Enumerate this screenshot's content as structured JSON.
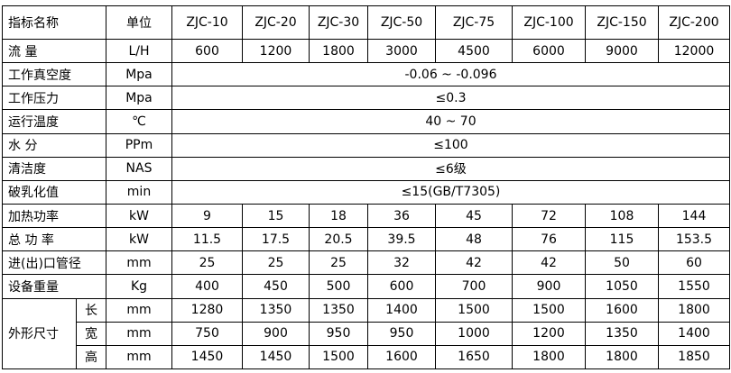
{
  "table": {
    "header": [
      "指标名称",
      "单位",
      "ZJC-10",
      "ZJC-20",
      "ZJC-30",
      "ZJC-50",
      "ZJC-75",
      "ZJC-100",
      "ZJC-150",
      "ZJC-200"
    ],
    "rows": [
      {
        "label": "流 量",
        "unit": "L/H",
        "values": [
          600,
          1200,
          1800,
          3000,
          4500,
          6000,
          9000,
          12000
        ]
      },
      {
        "label": "工作真空度",
        "unit": "Mpa",
        "value": "-0.06 ~ -0.096"
      },
      {
        "label": "工作压力",
        "unit": "Mpa",
        "value": "≤0.3"
      },
      {
        "label": "运行温度",
        "unit": "℃",
        "value": "40 ~ 70"
      },
      {
        "label": "水 分",
        "unit": "PPm",
        "value": "≤100"
      },
      {
        "label": "清洁度",
        "unit": "NAS",
        "value": "≤6级"
      },
      {
        "label": "破乳化值",
        "unit": "min",
        "value": "≤15(GB/T7305)"
      },
      {
        "label": "加热功率",
        "unit": "kW",
        "values": [
          9,
          15,
          18,
          36,
          45,
          72,
          108,
          144
        ]
      },
      {
        "label": "总 功 率",
        "unit": "kW",
        "values": [
          11.5,
          17.5,
          20.5,
          39.5,
          48,
          76,
          115,
          153.5
        ]
      },
      {
        "label": "进(出)口管径",
        "unit": "mm",
        "values": [
          25,
          25,
          25,
          32,
          42,
          42,
          50,
          60
        ]
      },
      {
        "label": "设备重量",
        "unit": "Kg",
        "values": [
          400,
          450,
          500,
          600,
          700,
          900,
          1050,
          1550
        ]
      }
    ],
    "group": {
      "label": "外形尺寸",
      "rows": [
        {
          "label": "长",
          "unit": "mm",
          "values": [
            1280,
            1350,
            1350,
            1400,
            1500,
            1500,
            1600,
            1800
          ]
        },
        {
          "label": "宽",
          "unit": "mm",
          "values": [
            750,
            900,
            950,
            950,
            1000,
            1200,
            1350,
            1400
          ]
        },
        {
          "label": "高",
          "unit": "mm",
          "values": [
            1450,
            1450,
            1500,
            1600,
            1650,
            1800,
            1800,
            1850
          ]
        }
      ]
    }
  }
}
